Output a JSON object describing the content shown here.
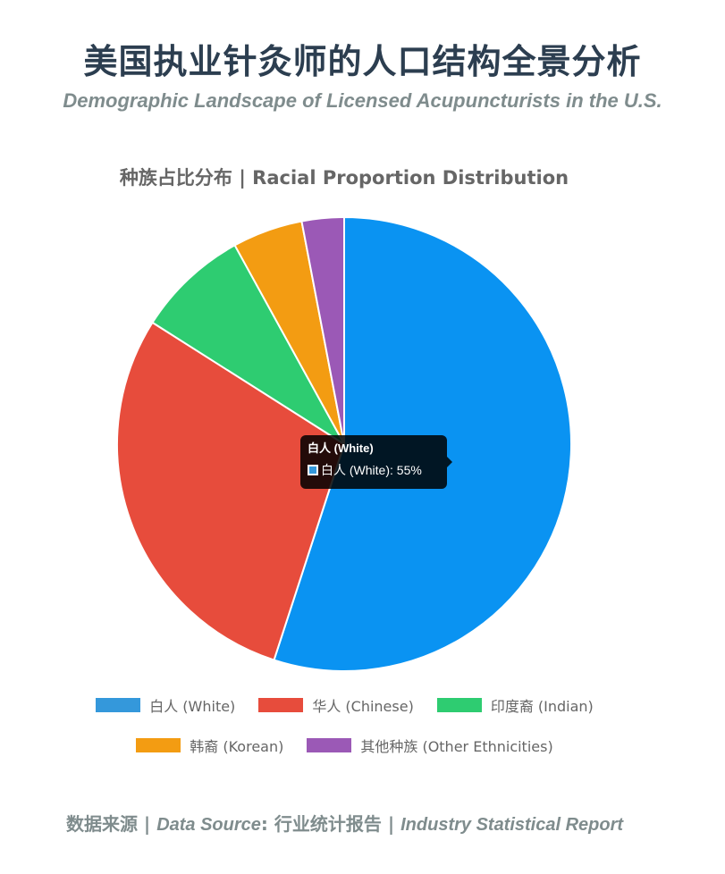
{
  "page": {
    "title": "美国执业针灸师的人口结构全景分析",
    "subtitle": "Demographic Landscape of Licensed Acupuncturists in the U.S."
  },
  "footer": {
    "label": "数据来源 | ",
    "source_en": "Data Source",
    "colon": ": ",
    "source_cn": "行业统计报告 | ",
    "report_en": "Industry Statistical Report"
  },
  "tooltip": {
    "title": "白人 (White)",
    "body": "白人 (White): 55%",
    "color": "#3498db"
  },
  "chart_data": {
    "type": "pie",
    "title": "种族占比分布 | Racial Proportion Distribution",
    "legend_position": "bottom",
    "unit": "%",
    "categories": [
      "白人 (White)",
      "华人 (Chinese)",
      "印度裔 (Indian)",
      "韩裔 (Korean)",
      "其他种族 (Other Ethnicities)"
    ],
    "values": [
      55,
      29,
      8,
      5,
      3
    ],
    "colors": [
      "#0a93f2",
      "#e74c3c",
      "#2ecc71",
      "#f39c12",
      "#9b59b6"
    ],
    "legend_colors": [
      "#3498db",
      "#e74c3c",
      "#2ecc71",
      "#f39c12",
      "#9b59b6"
    ]
  }
}
